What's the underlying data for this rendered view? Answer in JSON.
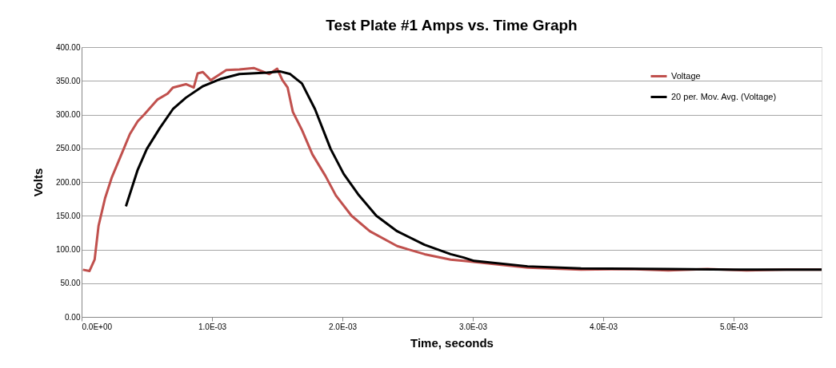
{
  "chart_data": {
    "type": "line",
    "title": "Test Plate #1 Amps vs. Time Graph",
    "xlabel": "Time, seconds",
    "ylabel": "Volts",
    "xlim": [
      0,
      0.005675
    ],
    "xticks": [
      {
        "value": 0,
        "label": "0.0E+00"
      },
      {
        "value": 0.001,
        "label": "1.0E-03"
      },
      {
        "value": 0.002,
        "label": "2.0E-03"
      },
      {
        "value": 0.003,
        "label": "3.0E-03"
      },
      {
        "value": 0.004,
        "label": "4.0E-03"
      },
      {
        "value": 0.005,
        "label": "5.0E-03"
      }
    ],
    "ylim": [
      0,
      400
    ],
    "yticks": [
      {
        "value": 0,
        "label": "0.00"
      },
      {
        "value": 50,
        "label": "50.00"
      },
      {
        "value": 100,
        "label": "100.00"
      },
      {
        "value": 150,
        "label": "150.00"
      },
      {
        "value": 200,
        "label": "200.00"
      },
      {
        "value": 250,
        "label": "250.00"
      },
      {
        "value": 300,
        "label": "300.00"
      },
      {
        "value": 350,
        "label": "350.00"
      },
      {
        "value": 400,
        "label": "400.00"
      }
    ],
    "grid": "y",
    "legend": "right",
    "marker": "none",
    "line_style": "solid",
    "series": [
      {
        "name": "Voltage",
        "color": "#c0504d",
        "x": [
          1e-05,
          6e-05,
          0.0001,
          0.00013,
          0.00018,
          0.00023,
          0.00031,
          0.00037,
          0.00043,
          0.00048,
          0.00058,
          0.00066,
          0.0007,
          0.0008,
          0.00086,
          0.00089,
          0.00093,
          0.00099,
          0.00111,
          0.00121,
          0.00132,
          0.00144,
          0.0015,
          0.00154,
          0.00158,
          0.00162,
          0.00169,
          0.00177,
          0.00187,
          0.00195,
          0.00207,
          0.00221,
          0.00242,
          0.00263,
          0.00283,
          0.00293,
          0.00342,
          0.00383,
          0.0042,
          0.0045,
          0.0048,
          0.0051,
          0.0054,
          0.005675
        ],
        "values": [
          70,
          68,
          85,
          135,
          176,
          206,
          243,
          271,
          290,
          300,
          322,
          331,
          340,
          345,
          340,
          361,
          363,
          351,
          366,
          367,
          369,
          360,
          368,
          351,
          340,
          304,
          277,
          241,
          209,
          180,
          150,
          127,
          105,
          93,
          85,
          83,
          73,
          70,
          71,
          69,
          71,
          69,
          70,
          70
        ]
      },
      {
        "name": "20 per. Mov. Avg. (Voltage)",
        "color": "#000000",
        "x": [
          0.00034,
          0.00043,
          0.0005,
          0.0006,
          0.0007,
          0.0008,
          0.00093,
          0.00107,
          0.00121,
          0.00142,
          0.00152,
          0.0016,
          0.00169,
          0.00179,
          0.00191,
          0.00201,
          0.00212,
          0.00226,
          0.00242,
          0.00263,
          0.00283,
          0.00293,
          0.00301,
          0.00342,
          0.00383,
          0.0045,
          0.005,
          0.005675
        ],
        "values": [
          164,
          218,
          249,
          280,
          308,
          325,
          342,
          353,
          360,
          362,
          364,
          360,
          346,
          308,
          249,
          212,
          182,
          150,
          127,
          107,
          93,
          88,
          83,
          75,
          72,
          71,
          70,
          70
        ]
      }
    ]
  }
}
